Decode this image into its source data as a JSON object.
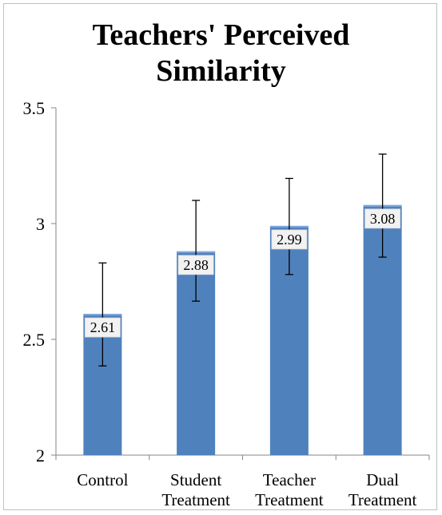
{
  "chart_data": {
    "type": "bar",
    "title": "Teachers' Perceived Similarity",
    "title_lines": [
      "Teachers'",
      "Perceived",
      "Similarity"
    ],
    "categories": [
      [
        "Control"
      ],
      [
        "Student",
        "Treatment"
      ],
      [
        "Teacher",
        "Treatment"
      ],
      [
        "Dual",
        "Treatment"
      ]
    ],
    "values": [
      2.61,
      2.88,
      2.99,
      3.08
    ],
    "value_labels": [
      "2.61",
      "2.88",
      "2.99",
      "3.08"
    ],
    "error_upper": [
      2.83,
      3.1,
      3.195,
      3.3
    ],
    "error_lower": [
      2.385,
      2.665,
      2.78,
      2.855
    ],
    "ylim": [
      2,
      3.5
    ],
    "yticks": [
      2,
      2.5,
      3,
      3.5
    ],
    "ytick_labels": [
      "2",
      "2.5",
      "3",
      "3.5"
    ],
    "xlabel": "",
    "ylabel": "",
    "grid": false,
    "legend": "none",
    "bar_color": "#4f81bd",
    "bar_top_color": "#7ea7da"
  }
}
